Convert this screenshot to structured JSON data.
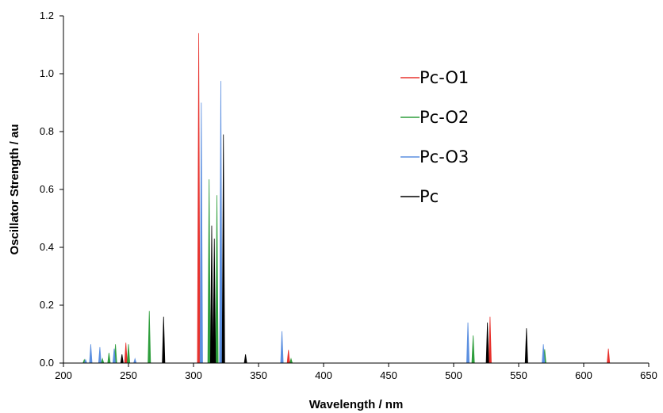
{
  "chart_data": {
    "type": "bar",
    "subtype": "stick-spectrum",
    "xlabel": "Wavelength / nm",
    "ylabel": "Oscillator Strength / au",
    "xlim": [
      200,
      650
    ],
    "ylim": [
      0,
      1.2
    ],
    "xticks": [
      200,
      250,
      300,
      350,
      400,
      450,
      500,
      550,
      600,
      650
    ],
    "yticks": [
      0.0,
      0.2,
      0.4,
      0.6,
      0.8,
      1.0,
      1.2
    ],
    "xtick_labels": [
      "200",
      "250",
      "300",
      "350",
      "400",
      "450",
      "500",
      "550",
      "600",
      "650"
    ],
    "ytick_labels": [
      "0.0",
      "0.2",
      "0.4",
      "0.6",
      "0.8",
      "1.0",
      "1.2"
    ],
    "grid": false,
    "legend_position": "right",
    "series": [
      {
        "name": "Pc-O1",
        "color": "#e8332e",
        "points": [
          {
            "x": 248,
            "y": 0.07
          },
          {
            "x": 304,
            "y": 1.14
          },
          {
            "x": 373,
            "y": 0.045
          },
          {
            "x": 528,
            "y": 0.16
          },
          {
            "x": 619,
            "y": 0.05
          }
        ]
      },
      {
        "name": "Pc-O2",
        "color": "#2e9e3c",
        "points": [
          {
            "x": 216,
            "y": 0.012
          },
          {
            "x": 230,
            "y": 0.015
          },
          {
            "x": 235,
            "y": 0.035
          },
          {
            "x": 240,
            "y": 0.065
          },
          {
            "x": 250,
            "y": 0.065
          },
          {
            "x": 266,
            "y": 0.18
          },
          {
            "x": 312,
            "y": 0.635
          },
          {
            "x": 318,
            "y": 0.58
          },
          {
            "x": 375,
            "y": 0.015
          },
          {
            "x": 515,
            "y": 0.095
          },
          {
            "x": 570,
            "y": 0.048
          }
        ]
      },
      {
        "name": "Pc-O3",
        "color": "#5b8fe0",
        "points": [
          {
            "x": 217,
            "y": 0.012
          },
          {
            "x": 221,
            "y": 0.065
          },
          {
            "x": 228,
            "y": 0.055
          },
          {
            "x": 239,
            "y": 0.05
          },
          {
            "x": 255,
            "y": 0.015
          },
          {
            "x": 306,
            "y": 0.9
          },
          {
            "x": 321,
            "y": 0.975
          },
          {
            "x": 368,
            "y": 0.11
          },
          {
            "x": 511,
            "y": 0.14
          },
          {
            "x": 569,
            "y": 0.065
          }
        ]
      },
      {
        "name": "Pc",
        "color": "#000000",
        "points": [
          {
            "x": 245,
            "y": 0.03
          },
          {
            "x": 277,
            "y": 0.16
          },
          {
            "x": 314,
            "y": 0.475
          },
          {
            "x": 316,
            "y": 0.43
          },
          {
            "x": 323,
            "y": 0.79
          },
          {
            "x": 340,
            "y": 0.03
          },
          {
            "x": 526,
            "y": 0.14
          },
          {
            "x": 556,
            "y": 0.12
          }
        ]
      }
    ]
  }
}
